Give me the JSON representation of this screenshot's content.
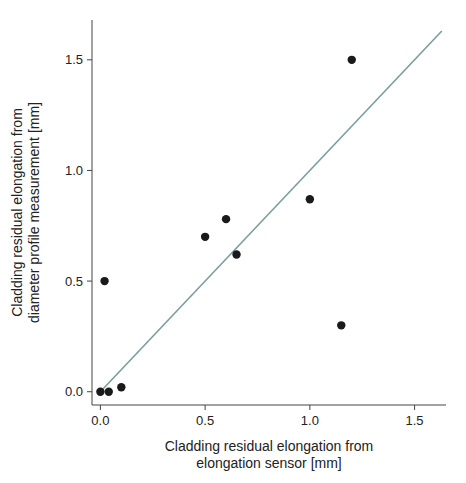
{
  "chart_data": {
    "type": "scatter",
    "xlabel": "Cladding residual elongation from\nelongation sensor [mm]",
    "ylabel": "Cladding residual elongation from\ndiameter profile measurement [mm]",
    "series": [
      {
        "type": "line",
        "x": [
          0.0,
          1.63
        ],
        "values": [
          0.0,
          1.63
        ],
        "color": "#7a9e9f"
      },
      {
        "type": "scatter",
        "x": [
          0.0,
          0.04,
          0.1,
          0.02,
          0.5,
          0.6,
          0.65,
          1.0,
          1.2,
          1.15
        ],
        "values": [
          0.0,
          0.0,
          0.02,
          0.5,
          0.7,
          0.78,
          0.62,
          0.87,
          1.5,
          0.3
        ],
        "color": "#1a1a1a"
      }
    ],
    "xlim": [
      -0.04,
      1.65
    ],
    "ylim": [
      -0.06,
      1.68
    ],
    "xticks": [
      {
        "value": 0.0,
        "label": "0.0"
      },
      0.5,
      {
        "value": 1.0,
        "label": "1.0"
      },
      1.5
    ],
    "yticks": [
      {
        "value": 0.0,
        "label": "0.0"
      },
      0.5,
      {
        "value": 1.0,
        "label": "1.0"
      },
      1.5
    ],
    "grid": false
  }
}
